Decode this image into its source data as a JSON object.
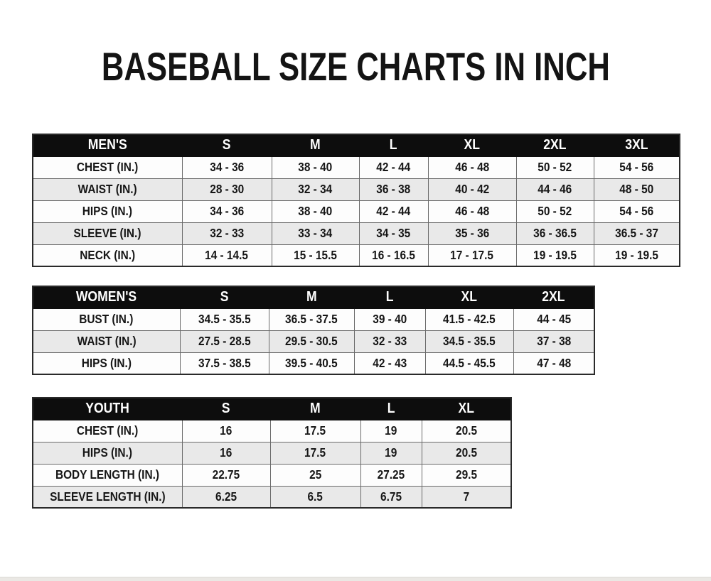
{
  "title": "BASEBALL SIZE CHARTS IN INCH",
  "colors": {
    "header_bg": "#0d0d0d",
    "header_text": "#ffffff",
    "row_even_bg": "#e9e9e9",
    "row_odd_bg": "#fdfdfd",
    "border": "#6a6a6a",
    "outer_border": "#2a2a2a",
    "title_text": "#141414"
  },
  "tables": [
    {
      "name": "mens",
      "headers": [
        "MEN'S",
        "S",
        "M",
        "L",
        "XL",
        "2XL",
        "3XL"
      ],
      "rows": [
        {
          "label": "CHEST (IN.)",
          "values": [
            "34 - 36",
            "38 - 40",
            "42 - 44",
            "46 - 48",
            "50 - 52",
            "54 - 56"
          ]
        },
        {
          "label": "WAIST (IN.)",
          "values": [
            "28 - 30",
            "32 - 34",
            "36 - 38",
            "40 - 42",
            "44 - 46",
            "48 - 50"
          ]
        },
        {
          "label": "HIPS (IN.)",
          "values": [
            "34 - 36",
            "38 - 40",
            "42 - 44",
            "46 - 48",
            "50 - 52",
            "54 - 56"
          ]
        },
        {
          "label": "SLEEVE (IN.)",
          "values": [
            "32 - 33",
            "33 - 34",
            "34 - 35",
            "35 - 36",
            "36 - 36.5",
            "36.5 - 37"
          ]
        },
        {
          "label": "NECK (IN.)",
          "values": [
            "14 - 14.5",
            "15 - 15.5",
            "16 - 16.5",
            "17 - 17.5",
            "19 - 19.5",
            "19 - 19.5"
          ]
        }
      ]
    },
    {
      "name": "womens",
      "headers": [
        "WOMEN'S",
        "S",
        "M",
        "L",
        "XL",
        "2XL"
      ],
      "rows": [
        {
          "label": "BUST (IN.)",
          "values": [
            "34.5 - 35.5",
            "36.5 - 37.5",
            "39 - 40",
            "41.5 - 42.5",
            "44 - 45"
          ]
        },
        {
          "label": "WAIST (IN.)",
          "values": [
            "27.5 - 28.5",
            "29.5 - 30.5",
            "32 - 33",
            "34.5 - 35.5",
            "37 - 38"
          ]
        },
        {
          "label": "HIPS (IN.)",
          "values": [
            "37.5 - 38.5",
            "39.5 - 40.5",
            "42 - 43",
            "44.5 - 45.5",
            "47 - 48"
          ]
        }
      ]
    },
    {
      "name": "youth",
      "headers": [
        "YOUTH",
        "S",
        "M",
        "L",
        "XL"
      ],
      "rows": [
        {
          "label": "CHEST (IN.)",
          "values": [
            "16",
            "17.5",
            "19",
            "20.5"
          ]
        },
        {
          "label": "HIPS (IN.)",
          "values": [
            "16",
            "17.5",
            "19",
            "20.5"
          ]
        },
        {
          "label": "BODY LENGTH (IN.)",
          "values": [
            "22.75",
            "25",
            "27.25",
            "29.5"
          ]
        },
        {
          "label": "SLEEVE LENGTH (IN.)",
          "values": [
            "6.25",
            "6.5",
            "6.75",
            "7"
          ]
        }
      ]
    }
  ]
}
